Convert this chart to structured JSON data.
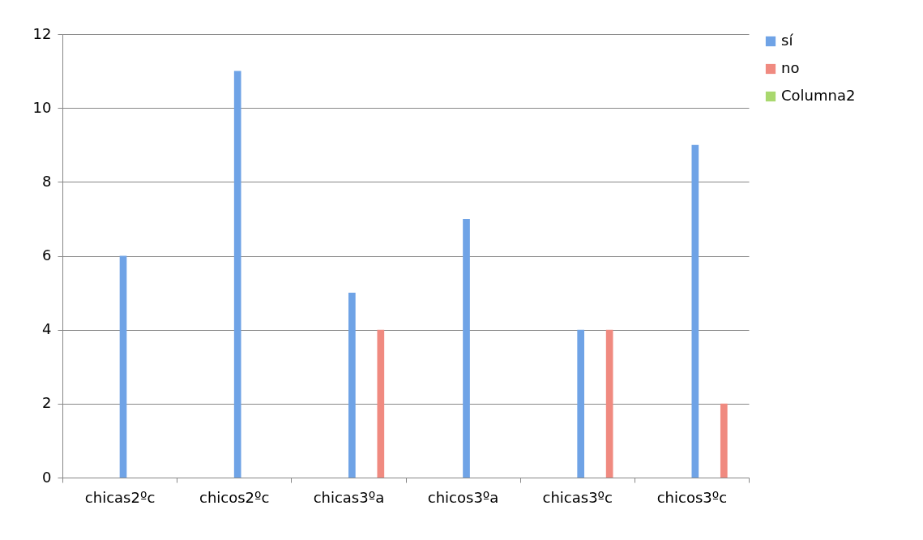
{
  "chart_data": {
    "type": "bar",
    "categories": [
      "chicas2ºc",
      "chicos2ºc",
      "chicas3ºa",
      "chicos3ºa",
      "chicas3ºc",
      "chicos3ºc"
    ],
    "series": [
      {
        "name": "sí",
        "color": "#6fa3e6",
        "values": [
          6,
          11,
          5,
          7,
          4,
          9
        ]
      },
      {
        "name": "no",
        "color": "#f08a80",
        "values": [
          null,
          null,
          4,
          null,
          4,
          2
        ]
      },
      {
        "name": "Columna2",
        "color": "#a9d86e",
        "values": [
          null,
          null,
          null,
          null,
          null,
          null
        ]
      }
    ],
    "ylim": [
      0,
      12
    ],
    "yticks": [
      0,
      2,
      4,
      6,
      8,
      10,
      12
    ],
    "grid": "y",
    "legend": "right"
  }
}
